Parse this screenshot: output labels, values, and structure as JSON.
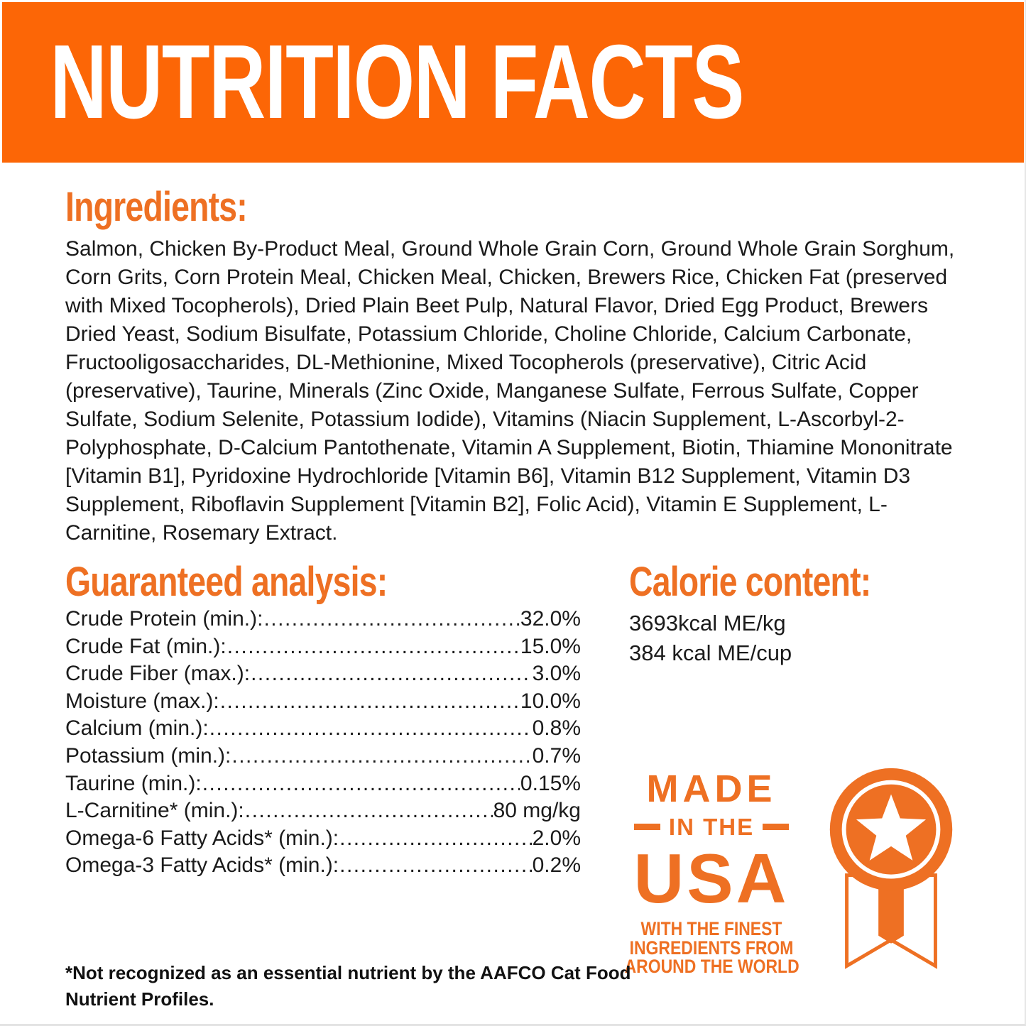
{
  "colors": {
    "band": "#FC6606",
    "accent": "#EE7023",
    "body_text": "#1A1A1A"
  },
  "header": {
    "title": "NUTRITION FACTS"
  },
  "ingredients": {
    "heading": "Ingredients:",
    "text": "Salmon, Chicken By-Product Meal, Ground Whole Grain Corn, Ground Whole Grain Sorghum, Corn Grits, Corn Protein Meal, Chicken Meal, Chicken, Brewers Rice, Chicken Fat (preserved with Mixed Tocopherols), Dried Plain Beet Pulp, Natural Flavor, Dried Egg Product, Brewers Dried Yeast, Sodium Bisulfate, Potassium Chloride, Choline Chloride, Calcium Carbonate, Fructooligosaccharides, DL-Methionine, Mixed Tocopherols (preservative), Citric Acid (preservative), Taurine, Minerals (Zinc Oxide, Manganese Sulfate, Ferrous Sulfate, Copper Sulfate, Sodium Selenite, Potassium Iodide), Vitamins (Niacin Supplement, L-Ascorbyl-2-Polyphosphate, D-Calcium Pantothenate, Vitamin A Supplement, Biotin, Thiamine Mononitrate [Vitamin B1], Pyridoxine Hydrochloride [Vitamin B6], Vitamin B12 Supplement, Vitamin D3 Supplement, Riboflavin Supplement [Vitamin B2], Folic Acid), Vitamin E Supplement, L-Carnitine, Rosemary Extract."
  },
  "guaranteed_analysis": {
    "heading": "Guaranteed analysis:",
    "rows": [
      {
        "label": "Crude Protein (min.):",
        "value": "32.0%"
      },
      {
        "label": "Crude Fat (min.):",
        "value": "15.0%"
      },
      {
        "label": "Crude Fiber (max.):",
        "value": "3.0%"
      },
      {
        "label": "Moisture (max.):",
        "value": "10.0%"
      },
      {
        "label": "Calcium (min.):",
        "value": "0.8%"
      },
      {
        "label": "Potassium (min.):",
        "value": "0.7%"
      },
      {
        "label": "Taurine (min.):",
        "value": "0.15%"
      },
      {
        "label": "L-Carnitine* (min.):",
        "value": "80 mg/kg"
      },
      {
        "label": "Omega-6 Fatty Acids* (min.):",
        "value": "2.0%"
      },
      {
        "label": "Omega-3 Fatty Acids* (min.):",
        "value": "0.2%"
      }
    ]
  },
  "calorie_content": {
    "heading": "Calorie content:",
    "lines": [
      "3693kcal ME/kg",
      "384 kcal ME/cup"
    ]
  },
  "badge": {
    "made": "MADE",
    "in_the": "IN THE",
    "usa": "USA",
    "tagline_lines": [
      "WITH THE FINEST",
      "INGREDIENTS FROM",
      "AROUND THE WORLD"
    ],
    "icon": "award-ribbon-star-icon"
  },
  "footnote": "*Not recognized as an essential nutrient by the AAFCO Cat Food Nutrient Profiles."
}
